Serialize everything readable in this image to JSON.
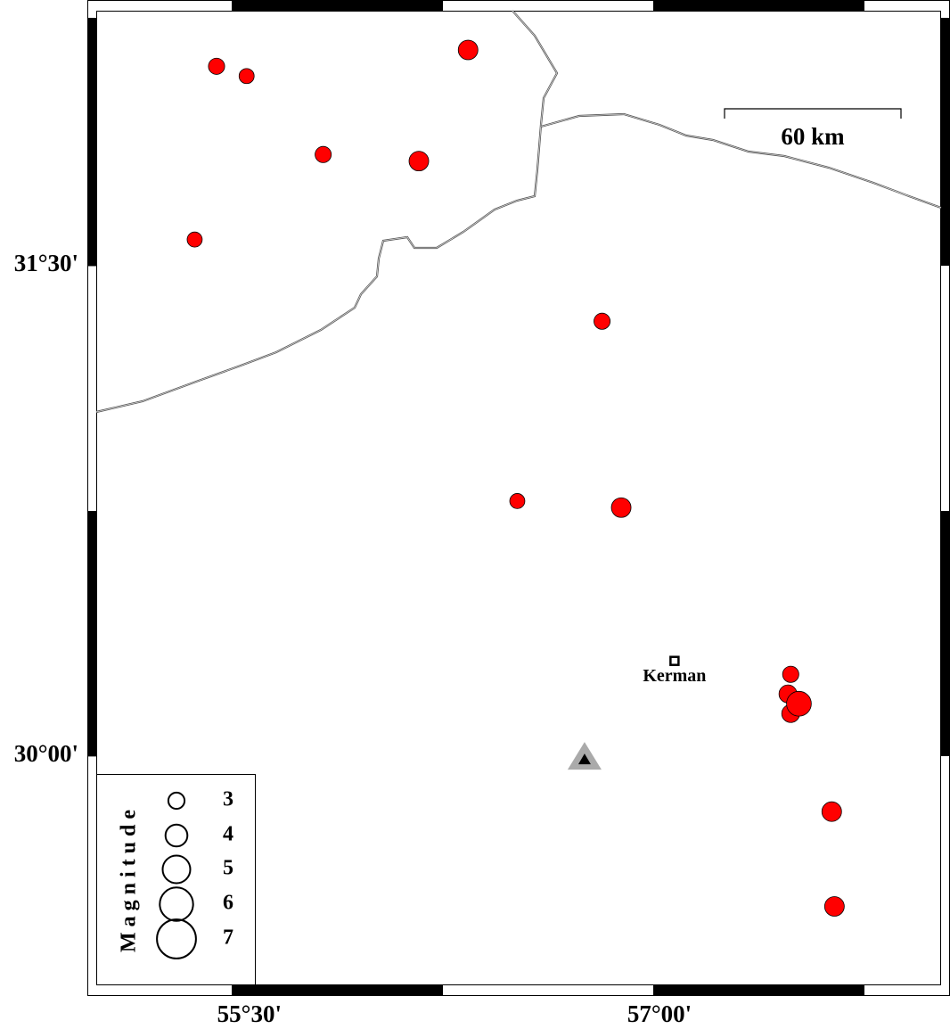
{
  "chart_data": {
    "type": "scatter",
    "x": [
      55.38,
      55.49,
      56.3,
      55.77,
      56.12,
      55.3,
      56.79,
      56.48,
      56.86,
      57.48,
      57.47,
      57.48,
      57.51,
      57.63,
      57.64
    ],
    "y": [
      32.11,
      32.08,
      32.16,
      31.84,
      31.82,
      31.58,
      31.33,
      30.78,
      30.76,
      30.25,
      30.19,
      30.13,
      30.16,
      29.83,
      29.54
    ],
    "sizes": [
      3.0,
      2.8,
      3.6,
      3.0,
      3.6,
      2.8,
      3.0,
      2.8,
      3.6,
      3.0,
      3.3,
      3.3,
      4.5,
      3.6,
      3.6
    ],
    "color": "#ff0000",
    "xlim": [
      54.94,
      58.03
    ],
    "ylim": [
      29.285,
      32.28
    ],
    "xticks": [
      {
        "value": 55.5,
        "label": "55°30'"
      },
      {
        "value": 57,
        "label": "57°00'"
      }
    ],
    "yticks": [
      {
        "value": 30,
        "label": "30°00'"
      },
      {
        "value": 31.5,
        "label": "31°30'"
      }
    ],
    "legend": {
      "title": "Magnitude",
      "values": [
        3,
        4,
        5,
        6,
        7
      ]
    },
    "city": {
      "name": "Kerman",
      "x": 57.055,
      "y": 30.291
    },
    "station": {
      "x": 56.726,
      "y": 29.994
    },
    "scale_bar": "60 km"
  }
}
